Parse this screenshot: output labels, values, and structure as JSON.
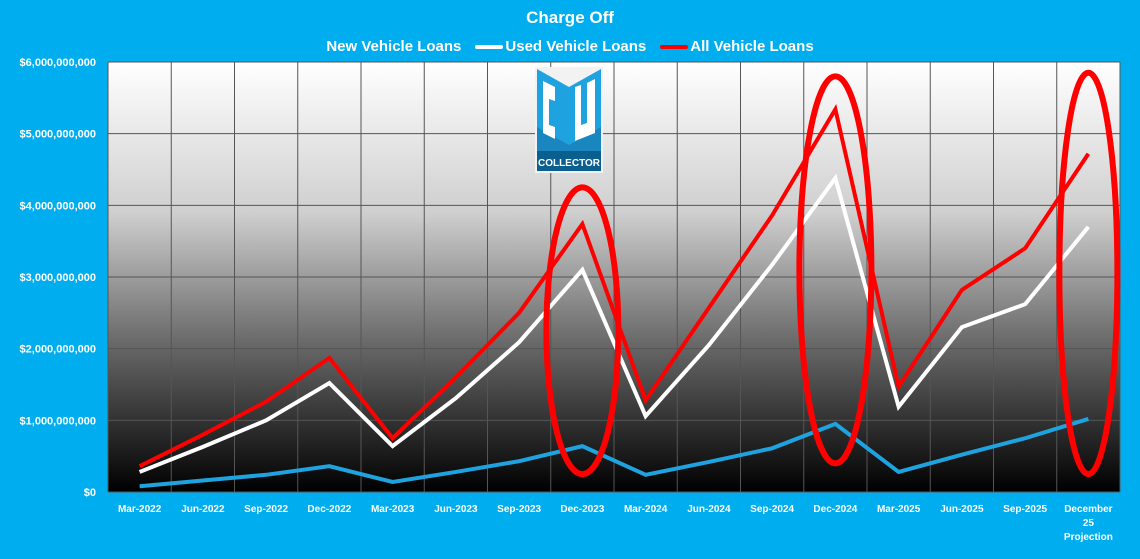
{
  "chart_data": {
    "type": "line",
    "title": "Charge Off",
    "xlabel": "",
    "ylabel": "",
    "ylim": [
      0,
      6000000000
    ],
    "yticks": [
      0,
      1000000000,
      2000000000,
      3000000000,
      4000000000,
      5000000000,
      6000000000
    ],
    "ytick_labels": [
      "$0",
      "$1,000,000,000",
      "$2,000,000,000",
      "$3,000,000,000",
      "$4,000,000,000",
      "$5,000,000,000",
      "$6,000,000,000"
    ],
    "grid": true,
    "legend_position": "top-center",
    "categories": [
      "Mar-2022",
      "Jun-2022",
      "Sep-2022",
      "Dec-2022",
      "Mar-2023",
      "Jun-2023",
      "Sep-2023",
      "Dec-2023",
      "Mar-2024",
      "Jun-2024",
      "Sep-2024",
      "Dec-2024",
      "Mar-2025",
      "Jun-2025",
      "Sep-2025",
      "December 25 Projection"
    ],
    "series": [
      {
        "name": "New Vehicle Loans",
        "color": "#1fa3e0",
        "values": [
          80000000,
          160000000,
          240000000,
          360000000,
          140000000,
          280000000,
          430000000,
          640000000,
          240000000,
          420000000,
          610000000,
          950000000,
          280000000,
          520000000,
          750000000,
          1020000000
        ]
      },
      {
        "name": "Used Vehicle Loans",
        "color": "#ffffff",
        "values": [
          280000000,
          630000000,
          1000000000,
          1520000000,
          640000000,
          1310000000,
          2090000000,
          3100000000,
          1060000000,
          2050000000,
          3170000000,
          4380000000,
          1190000000,
          2300000000,
          2620000000,
          3700000000
        ]
      },
      {
        "name": "All Vehicle Loans",
        "color": "#ff0000",
        "values": [
          360000000,
          800000000,
          1260000000,
          1870000000,
          750000000,
          1600000000,
          2500000000,
          3740000000,
          1280000000,
          2570000000,
          3860000000,
          5340000000,
          1470000000,
          2820000000,
          3400000000,
          4720000000
        ]
      }
    ],
    "annotations": [
      {
        "type": "ellipse",
        "category": "Dec-2023",
        "y_range": [
          250000000,
          4250000000
        ],
        "color": "#ff0000"
      },
      {
        "type": "ellipse",
        "category": "Dec-2024",
        "y_range": [
          400000000,
          5800000000
        ],
        "color": "#ff0000"
      },
      {
        "type": "ellipse",
        "category": "December 25 Projection",
        "y_range": [
          250000000,
          5850000000
        ],
        "color": "#ff0000"
      }
    ]
  },
  "logo": {
    "text": "CU",
    "subtext": "COLLECTOR"
  }
}
